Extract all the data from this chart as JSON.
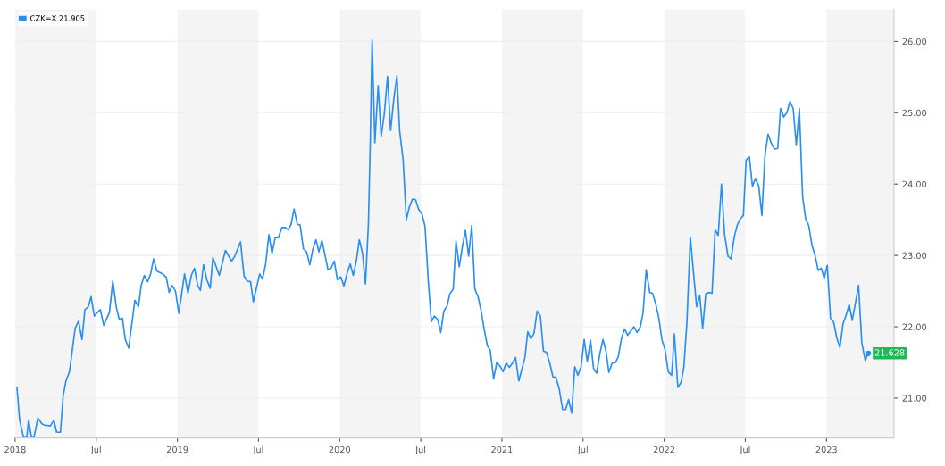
{
  "chart_data": {
    "type": "line",
    "xlim": [
      2018.0,
      2023.416
    ],
    "ylim": [
      20.44,
      26.45
    ],
    "xticks": [
      {
        "value": 2018,
        "label": "2018"
      },
      {
        "value": 2018.5,
        "label": "Jul"
      },
      {
        "value": 2019,
        "label": "2019"
      },
      {
        "value": 2019.5,
        "label": "Jul"
      },
      {
        "value": 2020,
        "label": "2020"
      },
      {
        "value": 2020.5,
        "label": "Jul"
      },
      {
        "value": 2021,
        "label": "2021"
      },
      {
        "value": 2021.5,
        "label": "Jul"
      },
      {
        "value": 2022,
        "label": "2022"
      },
      {
        "value": 2022.5,
        "label": "Jul"
      },
      {
        "value": 2023,
        "label": "2023"
      }
    ],
    "yticks": [
      {
        "value": 21,
        "label": "21.00"
      },
      {
        "value": 22,
        "label": "22.00"
      },
      {
        "value": 23,
        "label": "23.00"
      },
      {
        "value": 24,
        "label": "24.00"
      },
      {
        "value": 25,
        "label": "25.00"
      },
      {
        "value": 26,
        "label": "26.00"
      }
    ],
    "grid": "y",
    "legend": "top left",
    "marker": "none",
    "line_style": "solid",
    "bands": [
      {
        "axis": "x",
        "from": 2018.0,
        "to": 2018.5,
        "color": "#f4f4f4"
      },
      {
        "axis": "x",
        "from": 2019.0,
        "to": 2019.5,
        "color": "#f4f4f4"
      },
      {
        "axis": "x",
        "from": 2020.0,
        "to": 2020.5,
        "color": "#f4f4f4"
      },
      {
        "axis": "x",
        "from": 2021.0,
        "to": 2021.5,
        "color": "#f4f4f4"
      },
      {
        "axis": "x",
        "from": 2022.0,
        "to": 2022.5,
        "color": "#f4f4f4"
      },
      {
        "axis": "x",
        "from": 2023.0,
        "to": 2023.416,
        "color": "#f4f4f4"
      }
    ],
    "annotations": [
      {
        "text": "21.628",
        "x": 2023.258,
        "y": 21.628
      }
    ],
    "series": [
      {
        "name": "CZK=X 21.905",
        "color": "#2b8ff0",
        "x": [
          2018.011,
          2018.028,
          2018.051,
          2018.072,
          2018.083,
          2018.1,
          2018.117,
          2018.14,
          2018.165,
          2018.183,
          2018.217,
          2018.239,
          2018.256,
          2018.279,
          2018.296,
          2018.314,
          2018.335,
          2018.37,
          2018.391,
          2018.412,
          2018.43,
          2018.451,
          2018.468,
          2018.488,
          2018.511,
          2018.525,
          2018.546,
          2018.581,
          2018.602,
          2018.623,
          2018.642,
          2018.661,
          2018.679,
          2018.7,
          2018.738,
          2018.76,
          2018.777,
          2018.796,
          2018.816,
          2018.835,
          2018.853,
          2018.874,
          2018.911,
          2018.932,
          2018.949,
          2018.968,
          2018.988,
          2019.009,
          2019.044,
          2019.065,
          2019.086,
          2019.105,
          2019.125,
          2019.142,
          2019.161,
          2019.181,
          2019.202,
          2019.219,
          2019.258,
          2019.296,
          2019.335,
          2019.354,
          2019.389,
          2019.411,
          2019.43,
          2019.451,
          2019.468,
          2019.507,
          2019.525,
          2019.544,
          2019.564,
          2019.583,
          2019.603,
          2019.623,
          2019.644,
          2019.665,
          2019.682,
          2019.7,
          2019.719,
          2019.74,
          2019.756,
          2019.777,
          2019.796,
          2019.816,
          2019.835,
          2019.854,
          2019.872,
          2019.891,
          2019.911,
          2019.928,
          2019.947,
          2019.967,
          2019.986,
          2020.007,
          2020.026,
          2020.046,
          2020.065,
          2020.084,
          2020.104,
          2020.121,
          2020.141,
          2020.159,
          2020.177,
          2020.188,
          2020.2,
          2020.217,
          2020.237,
          2020.256,
          2020.275,
          2020.295,
          2020.314,
          2020.333,
          2020.353,
          2020.37,
          2020.391,
          2020.411,
          2020.43,
          2020.449,
          2020.468,
          2020.486,
          2020.507,
          2020.526,
          2020.546,
          2020.565,
          2020.584,
          2020.604,
          2020.623,
          2020.642,
          2020.662,
          2020.679,
          2020.7,
          2020.717,
          2020.737,
          2020.756,
          2020.775,
          2020.795,
          2020.814,
          2020.833,
          2020.853,
          2020.872,
          2020.891,
          2020.911,
          2020.928,
          2020.949,
          2020.968,
          2020.988,
          2021.007,
          2021.026,
          2021.046,
          2021.065,
          2021.084,
          2021.104,
          2021.121,
          2021.142,
          2021.159,
          2021.179,
          2021.198,
          2021.217,
          2021.237,
          2021.256,
          2021.275,
          2021.295,
          2021.314,
          2021.333,
          2021.353,
          2021.374,
          2021.393,
          2021.411,
          2021.43,
          2021.449,
          2021.468,
          2021.488,
          2021.507,
          2021.526,
          2021.546,
          2021.565,
          2021.584,
          2021.604,
          2021.623,
          2021.642,
          2021.659,
          2021.679,
          2021.7,
          2021.717,
          2021.737,
          2021.756,
          2021.775,
          2021.814,
          2021.833,
          2021.853,
          2021.87,
          2021.889,
          2021.911,
          2021.928,
          2021.947,
          2021.967,
          2021.986,
          2022.005,
          2022.025,
          2022.046,
          2022.063,
          2022.084,
          2022.104,
          2022.121,
          2022.14,
          2022.161,
          2022.181,
          2022.2,
          2022.219,
          2022.237,
          2022.256,
          2022.275,
          2022.295,
          2022.314,
          2022.333,
          2022.353,
          2022.372,
          2022.393,
          2022.412,
          2022.432,
          2022.451,
          2022.468,
          2022.488,
          2022.505,
          2022.525,
          2022.544,
          2022.563,
          2022.583,
          2022.602,
          2022.621,
          2022.64,
          2022.659,
          2022.679,
          2022.7,
          2022.717,
          2022.737,
          2022.756,
          2022.775,
          2022.795,
          2022.814,
          2022.833,
          2022.853,
          2022.872,
          2022.891,
          2022.911,
          2022.93,
          2022.949,
          2022.968,
          2022.986,
          2023.005,
          2023.025,
          2023.044,
          2023.063,
          2023.083,
          2023.102,
          2023.121,
          2023.14,
          2023.159,
          2023.179,
          2023.198,
          2023.218,
          2023.239,
          2023.258
        ],
        "values": [
          21.15,
          20.69,
          20.46,
          20.46,
          20.69,
          20.46,
          20.46,
          20.72,
          20.64,
          20.62,
          20.61,
          20.69,
          20.52,
          20.52,
          21.03,
          21.25,
          21.37,
          21.98,
          22.08,
          21.82,
          22.24,
          22.28,
          22.42,
          22.15,
          22.21,
          22.24,
          22.02,
          22.2,
          22.64,
          22.28,
          22.1,
          22.12,
          21.82,
          21.7,
          22.37,
          22.28,
          22.58,
          22.72,
          22.63,
          22.74,
          22.95,
          22.78,
          22.74,
          22.69,
          22.48,
          22.58,
          22.5,
          22.19,
          22.74,
          22.47,
          22.72,
          22.82,
          22.58,
          22.51,
          22.87,
          22.66,
          22.54,
          22.97,
          22.72,
          23.07,
          22.92,
          22.99,
          23.19,
          22.71,
          22.64,
          22.63,
          22.35,
          22.74,
          22.67,
          22.88,
          23.29,
          23.03,
          23.25,
          23.25,
          23.39,
          23.39,
          23.36,
          23.43,
          23.65,
          23.43,
          23.43,
          23.09,
          23.05,
          22.87,
          23.09,
          23.22,
          23.05,
          23.21,
          22.99,
          22.8,
          22.82,
          22.92,
          22.66,
          22.7,
          22.57,
          22.75,
          22.88,
          22.72,
          22.94,
          23.22,
          23.03,
          22.6,
          23.43,
          24.52,
          26.02,
          24.58,
          25.38,
          24.67,
          24.98,
          25.51,
          24.75,
          25.18,
          25.52,
          24.74,
          24.34,
          23.5,
          23.68,
          23.79,
          23.78,
          23.65,
          23.58,
          23.41,
          22.65,
          22.07,
          22.15,
          22.1,
          21.92,
          22.22,
          22.29,
          22.46,
          22.53,
          23.2,
          22.84,
          23.12,
          23.35,
          22.99,
          23.42,
          22.53,
          22.42,
          22.22,
          21.96,
          21.73,
          21.67,
          21.27,
          21.5,
          21.45,
          21.37,
          21.49,
          21.43,
          21.49,
          21.57,
          21.24,
          21.39,
          21.57,
          21.93,
          21.83,
          21.91,
          22.22,
          22.15,
          21.66,
          21.64,
          21.49,
          21.3,
          21.29,
          21.13,
          20.84,
          20.84,
          20.98,
          20.79,
          21.44,
          21.32,
          21.44,
          21.82,
          21.51,
          21.81,
          21.41,
          21.35,
          21.63,
          21.82,
          21.65,
          21.36,
          21.49,
          21.5,
          21.58,
          21.84,
          21.97,
          21.88,
          22.0,
          21.92,
          22.0,
          22.2,
          22.8,
          22.48,
          22.47,
          22.33,
          22.12,
          21.82,
          21.68,
          21.37,
          21.32,
          21.9,
          21.15,
          21.22,
          21.43,
          22.06,
          23.26,
          22.75,
          22.28,
          22.44,
          21.98,
          22.46,
          22.48,
          22.47,
          23.36,
          23.28,
          24.0,
          23.3,
          22.99,
          22.95,
          23.26,
          23.43,
          23.51,
          23.56,
          24.34,
          24.38,
          23.97,
          24.08,
          23.97,
          23.56,
          24.4,
          24.7,
          24.58,
          24.49,
          24.5,
          25.06,
          24.94,
          25.0,
          25.16,
          25.06,
          24.55,
          25.06,
          23.83,
          23.51,
          23.42,
          23.14,
          23.0,
          22.79,
          22.82,
          22.68,
          22.86,
          22.12,
          22.07,
          21.85,
          21.71,
          22.04,
          22.16,
          22.31,
          22.09,
          22.34,
          22.58,
          21.77,
          21.53,
          21.63
        ]
      }
    ]
  }
}
